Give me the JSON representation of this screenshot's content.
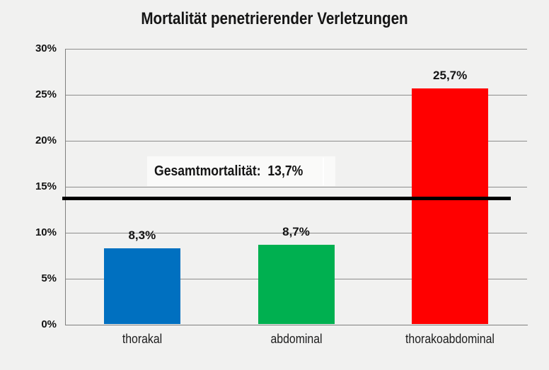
{
  "title": "Mortalität penetrierender Verletzungen",
  "chart_data": {
    "type": "bar",
    "title": "Mortalität penetrierender Verletzungen",
    "categories": [
      "thorakal",
      "abdominal",
      "thorakoabdominal"
    ],
    "values": [
      8.3,
      8.7,
      25.7
    ],
    "value_labels": [
      "8,3%",
      "8,7%",
      "25,7%"
    ],
    "bar_colors": [
      "#0070C0",
      "#00B050",
      "#FF0000"
    ],
    "xlabel": "",
    "ylabel": "",
    "ylim": [
      0,
      30
    ],
    "yticks": [
      {
        "value": 0,
        "label": "0%"
      },
      {
        "value": 5,
        "label": "5%"
      },
      {
        "value": 10,
        "label": "10%"
      },
      {
        "value": 15,
        "label": "15%"
      },
      {
        "value": 20,
        "label": "20%"
      },
      {
        "value": 25,
        "label": "25%"
      },
      {
        "value": 30,
        "label": "30%"
      }
    ],
    "grid": true,
    "legend": "none",
    "reference_line": {
      "value": 13.7,
      "label": "Gesamtmortalität:  13,7%",
      "color": "#000000"
    },
    "colors": {
      "background": "#F1F1F0",
      "gridline": "#8d8d8c",
      "axis": "#7f7f7e",
      "text": "#141414",
      "annotation_background": "#FBFBFA",
      "cursor": "#FFFFFF"
    }
  }
}
